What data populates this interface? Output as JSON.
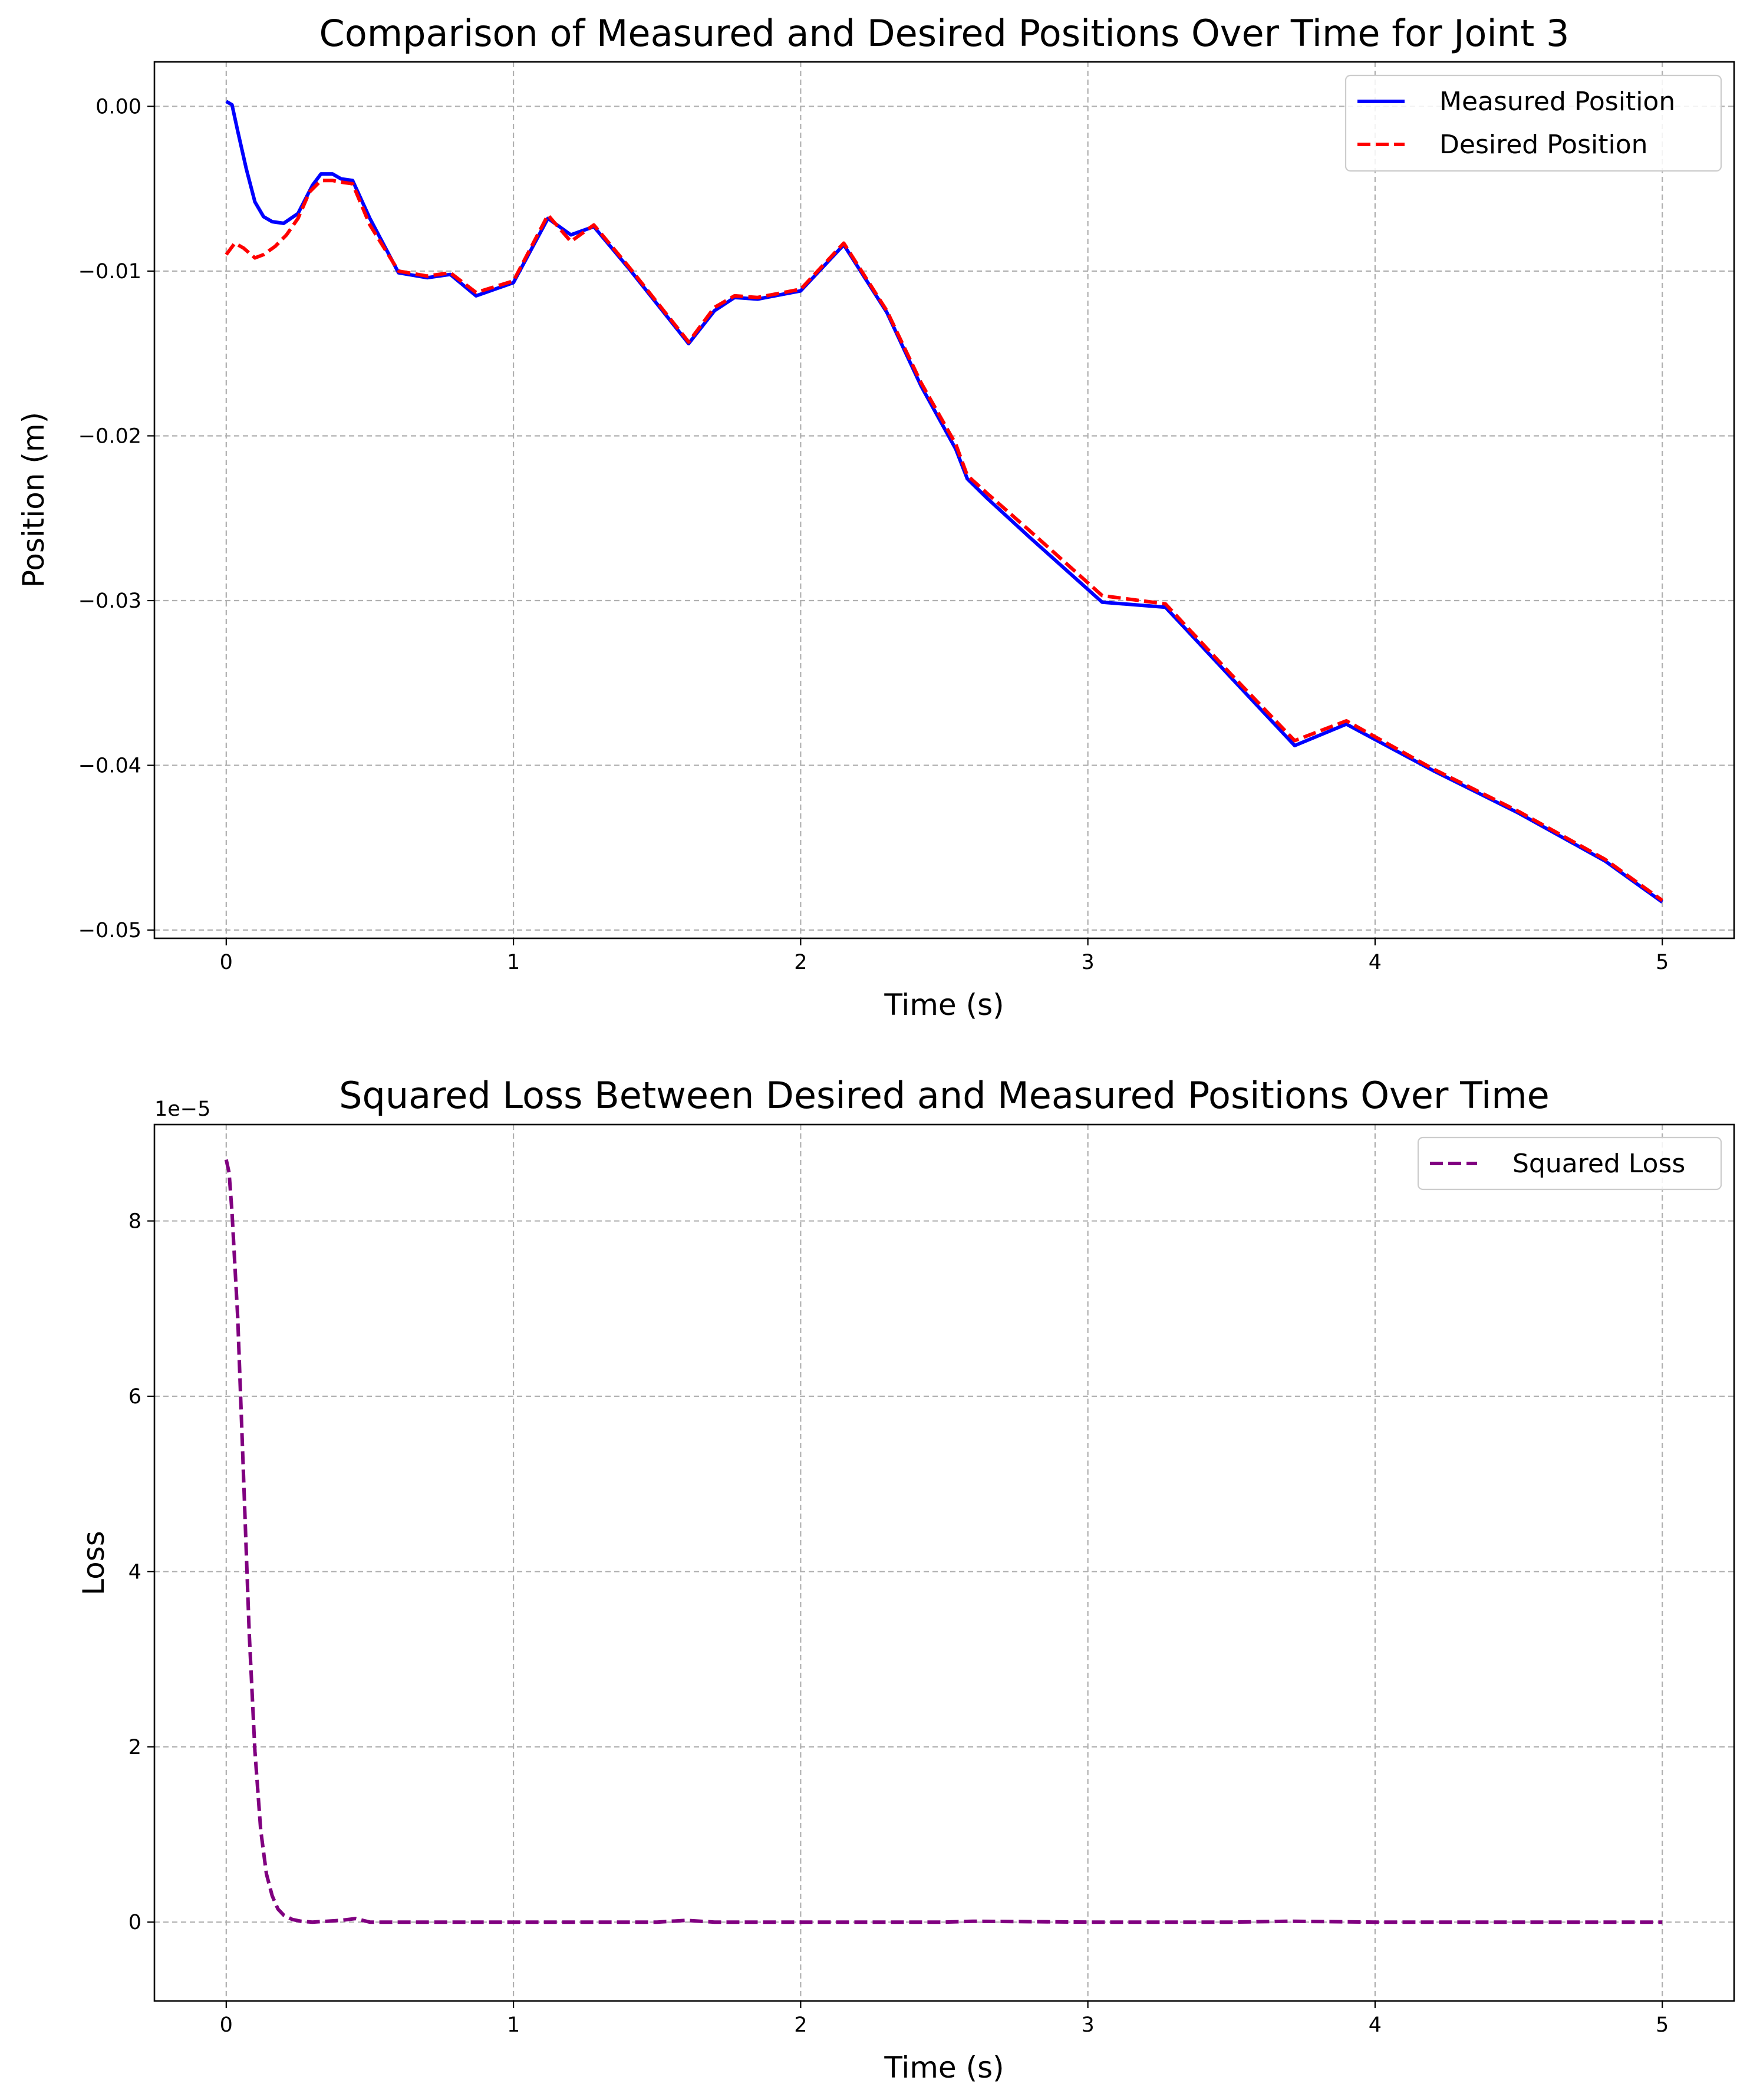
{
  "colors": {
    "measured": "#0000ff",
    "desired": "#ff0000",
    "loss": "#800080",
    "grid": "#b0b0b0"
  },
  "chart_data": [
    {
      "type": "line",
      "title": "Comparison of Measured and Desired Positions Over Time for Joint 3",
      "xlabel": "Time (s)",
      "ylabel": "Position (m)",
      "xlim": [
        -0.25,
        5.25
      ],
      "ylim": [
        -0.0505,
        0.0027
      ],
      "xticks": [
        0,
        1,
        2,
        3,
        4,
        5
      ],
      "xtick_labels": [
        "0",
        "1",
        "2",
        "3",
        "4",
        "5"
      ],
      "yticks": [
        0.0,
        -0.01,
        -0.02,
        -0.03,
        -0.04,
        -0.05
      ],
      "ytick_labels": [
        "0.00",
        "−0.01",
        "−0.02",
        "−0.03",
        "−0.04",
        "−0.05"
      ],
      "grid": true,
      "legend_position": "top-right",
      "series": [
        {
          "name": "Measured Position",
          "style": "solid",
          "color": "#0000ff",
          "x": [
            0,
            0.02,
            0.04,
            0.07,
            0.1,
            0.13,
            0.16,
            0.2,
            0.25,
            0.3,
            0.33,
            0.37,
            0.4,
            0.44,
            0.5,
            0.6,
            0.7,
            0.78,
            0.87,
            1.0,
            1.12,
            1.2,
            1.28,
            1.4,
            1.61,
            1.7,
            1.77,
            1.85,
            2.0,
            2.15,
            2.3,
            2.42,
            2.54,
            2.58,
            2.65,
            2.8,
            3.05,
            3.27,
            3.5,
            3.72,
            3.9,
            4.2,
            4.5,
            4.8,
            5.0
          ],
          "y": [
            0.0003,
            0.0001,
            -0.0015,
            -0.0038,
            -0.0058,
            -0.0067,
            -0.007,
            -0.0071,
            -0.0065,
            -0.0048,
            -0.0041,
            -0.0041,
            -0.0044,
            -0.0045,
            -0.0068,
            -0.0101,
            -0.0104,
            -0.0102,
            -0.0115,
            -0.0107,
            -0.0068,
            -0.0078,
            -0.0073,
            -0.0098,
            -0.0144,
            -0.0124,
            -0.0116,
            -0.0117,
            -0.0112,
            -0.0084,
            -0.0125,
            -0.017,
            -0.0208,
            -0.0226,
            -0.0238,
            -0.0262,
            -0.0301,
            -0.0304,
            -0.0347,
            -0.0388,
            -0.0375,
            -0.0403,
            -0.0429,
            -0.0458,
            -0.0483
          ]
        },
        {
          "name": "Desired Position",
          "style": "dashed",
          "color": "#ff0000",
          "x": [
            0,
            0.03,
            0.06,
            0.1,
            0.13,
            0.17,
            0.21,
            0.25,
            0.29,
            0.33,
            0.37,
            0.4,
            0.44,
            0.5,
            0.6,
            0.7,
            0.78,
            0.87,
            1.0,
            1.12,
            1.2,
            1.28,
            1.4,
            1.61,
            1.7,
            1.77,
            1.85,
            2.0,
            2.15,
            2.3,
            2.42,
            2.54,
            2.58,
            2.65,
            2.8,
            3.05,
            3.27,
            3.5,
            3.72,
            3.9,
            4.2,
            4.5,
            4.8,
            5.0
          ],
          "y": [
            -0.009,
            -0.0083,
            -0.0086,
            -0.0092,
            -0.009,
            -0.0085,
            -0.0078,
            -0.0068,
            -0.0052,
            -0.0045,
            -0.0045,
            -0.0046,
            -0.0047,
            -0.0072,
            -0.01,
            -0.0103,
            -0.0101,
            -0.0113,
            -0.0106,
            -0.0066,
            -0.0082,
            -0.0072,
            -0.0097,
            -0.0143,
            -0.0122,
            -0.0115,
            -0.0116,
            -0.0111,
            -0.0083,
            -0.0124,
            -0.0168,
            -0.0205,
            -0.0224,
            -0.0235,
            -0.0258,
            -0.0297,
            -0.0302,
            -0.0345,
            -0.0385,
            -0.0373,
            -0.0402,
            -0.0428,
            -0.0457,
            -0.0482
          ]
        }
      ]
    },
    {
      "type": "line",
      "title": "Squared Loss Between Desired and Measured Positions Over Time",
      "xlabel": "Time (s)",
      "ylabel": "Loss",
      "offset_text": "1e−5",
      "xlim": [
        -0.25,
        5.25
      ],
      "ylim": [
        -0.9,
        9.1
      ],
      "y_units_scale": 1e-05,
      "xticks": [
        0,
        1,
        2,
        3,
        4,
        5
      ],
      "xtick_labels": [
        "0",
        "1",
        "2",
        "3",
        "4",
        "5"
      ],
      "yticks": [
        0,
        2,
        4,
        6,
        8
      ],
      "ytick_labels": [
        "0",
        "2",
        "4",
        "6",
        "8"
      ],
      "grid": true,
      "legend_position": "top-right",
      "series": [
        {
          "name": "Squared Loss",
          "style": "dashed",
          "color": "#800080",
          "x": [
            0,
            0.01,
            0.02,
            0.04,
            0.06,
            0.08,
            0.1,
            0.12,
            0.14,
            0.16,
            0.18,
            0.2,
            0.23,
            0.26,
            0.3,
            0.35,
            0.4,
            0.45,
            0.5,
            0.6,
            1.0,
            1.5,
            1.6,
            1.7,
            2.0,
            2.5,
            2.6,
            3.0,
            3.5,
            3.7,
            4.0,
            4.5,
            5.0
          ],
          "y": [
            8.7,
            8.55,
            8.1,
            6.9,
            5.1,
            3.3,
            1.95,
            1.05,
            0.55,
            0.3,
            0.15,
            0.08,
            0.03,
            0.01,
            0.0,
            0.01,
            0.02,
            0.04,
            0.0,
            0.0,
            0.0,
            0.0,
            0.02,
            0.0,
            0.0,
            0.0,
            0.01,
            0.0,
            0.0,
            0.01,
            0.0,
            0.0,
            0.0
          ]
        }
      ]
    }
  ]
}
